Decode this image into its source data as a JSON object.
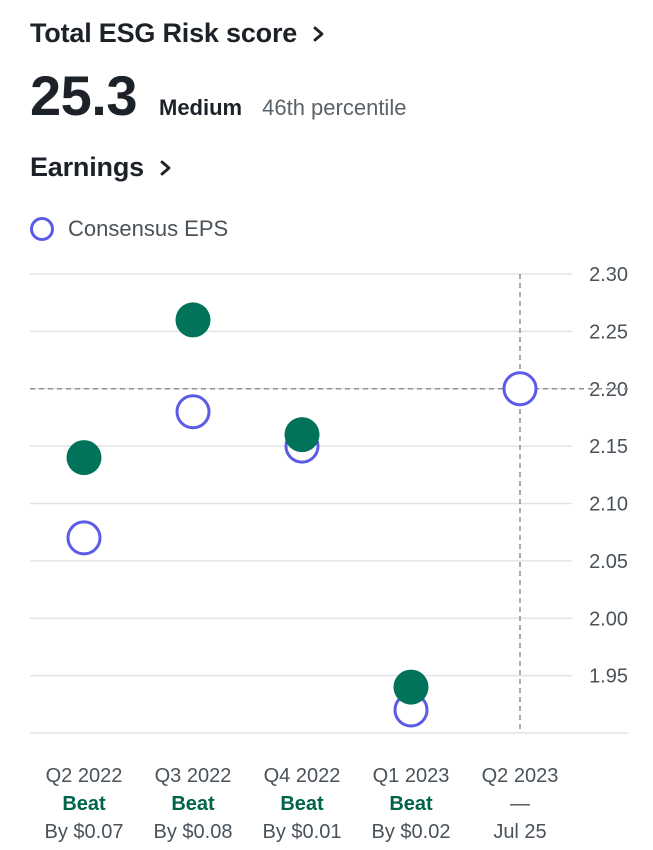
{
  "esg": {
    "title": "Total ESG Risk score",
    "score": "25.3",
    "level": "Medium",
    "percentile": "46th percentile"
  },
  "earnings": {
    "title": "Earnings"
  },
  "colors": {
    "actual": "#00735a",
    "estimate": "#5b5be8",
    "beat_text": "#00634b"
  },
  "chart_data": {
    "type": "scatter",
    "legend": [
      "Consensus EPS"
    ],
    "legend_position": "top-left",
    "grid": true,
    "y_axis_side": "right",
    "ylim": [
      1.9,
      2.3
    ],
    "yticks": [
      "2.30",
      "2.25",
      "2.20",
      "2.15",
      "2.10",
      "2.05",
      "2.00",
      "1.95"
    ],
    "reference_line_y": 2.2,
    "categories": [
      "Q2 2022",
      "Q3 2022",
      "Q4 2022",
      "Q1 2023",
      "Q2 2023"
    ],
    "series": [
      {
        "name": "Consensus EPS",
        "style": "hollow",
        "values": [
          2.07,
          2.18,
          2.15,
          1.92,
          2.2
        ]
      },
      {
        "style": "filled",
        "values": [
          2.14,
          2.26,
          2.16,
          1.94,
          null
        ]
      }
    ],
    "results": [
      "Beat",
      "Beat",
      "Beat",
      "Beat",
      "—"
    ],
    "details": [
      "By $0.07",
      "By $0.08",
      "By $0.01",
      "By $0.02",
      "Jul 25"
    ]
  }
}
